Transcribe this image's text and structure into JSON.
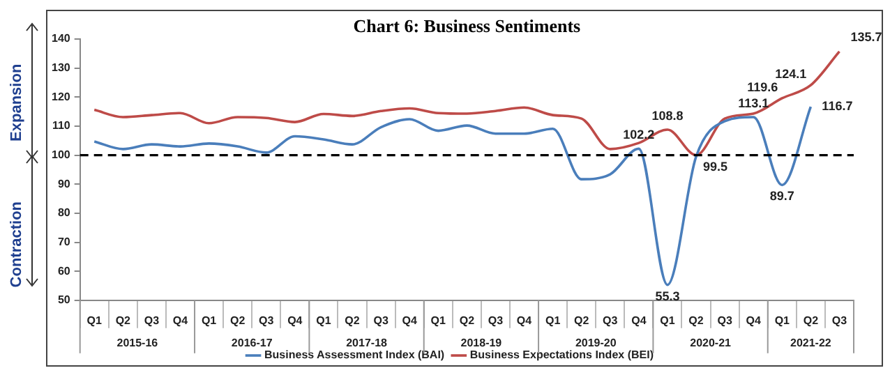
{
  "chart_data": {
    "type": "line",
    "title": "Chart 6: Business Sentiments",
    "categories": [
      "Q1",
      "Q2",
      "Q3",
      "Q4",
      "Q1",
      "Q2",
      "Q3",
      "Q4",
      "Q1",
      "Q2",
      "Q3",
      "Q4",
      "Q1",
      "Q2",
      "Q3",
      "Q4",
      "Q1",
      "Q2",
      "Q3",
      "Q4",
      "Q1",
      "Q2",
      "Q3",
      "Q4",
      "Q1",
      "Q2",
      "Q3"
    ],
    "series": [
      {
        "name": "Business Assessment Index (BAI)",
        "color": "#4a7ebb",
        "values": [
          104.7,
          102.1,
          103.7,
          103,
          104,
          103,
          100.9,
          106.5,
          105.4,
          103.7,
          109.6,
          112.4,
          108.4,
          110.2,
          107.4,
          107.4,
          109.1,
          91.7,
          93.4,
          102.2,
          55.3,
          99.5,
          111.7,
          113.1,
          89.7,
          116.7,
          null
        ],
        "value_labels": [
          null,
          null,
          null,
          null,
          null,
          null,
          null,
          null,
          null,
          null,
          null,
          null,
          null,
          null,
          null,
          null,
          null,
          null,
          null,
          "102.2",
          "55.3",
          "99.5",
          null,
          "113.1",
          "89.7",
          "116.7",
          null
        ]
      },
      {
        "name": "Business Expectations Index (BEI)",
        "color": "#be4b48",
        "values": [
          115.6,
          113.1,
          113.8,
          114.5,
          111,
          113.1,
          112.8,
          111.4,
          114.2,
          113.5,
          115.2,
          116.1,
          114.5,
          114.3,
          115.2,
          116.4,
          113.8,
          112.6,
          102.1,
          104.2,
          108.8,
          100,
          112.6,
          114.3,
          119.6,
          124.1,
          135.7
        ],
        "value_labels": [
          null,
          null,
          null,
          null,
          null,
          null,
          null,
          null,
          null,
          null,
          null,
          null,
          null,
          null,
          null,
          null,
          null,
          null,
          null,
          null,
          "108.8",
          null,
          null,
          null,
          "119.6",
          "124.1",
          "135.7"
        ]
      }
    ],
    "ylim": [
      50,
      140
    ],
    "yticks": [
      50,
      60,
      70,
      80,
      90,
      100,
      110,
      120,
      130,
      140
    ],
    "ref_lines": [
      {
        "axis": "y",
        "value": 100,
        "color": "#000000",
        "line_style": "dashed"
      }
    ],
    "annotations": [
      "Expansion",
      "Contraction",
      "2015-16",
      "2016-17",
      "2017-18",
      "2018-19",
      "2019-20",
      "2020-21",
      "2021-22"
    ],
    "grid": false,
    "legend": "bottom",
    "marker": "none",
    "line_style": "solid"
  }
}
